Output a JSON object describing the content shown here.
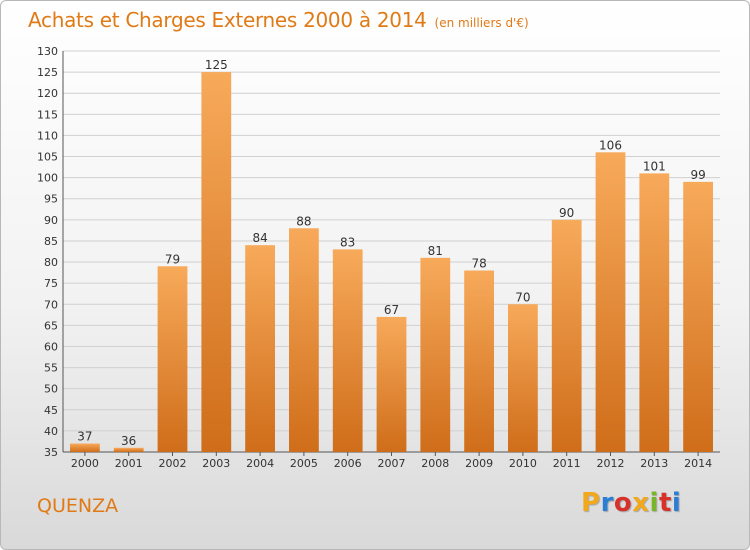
{
  "header": {
    "title": "Achats et Charges Externes 2000 à 2014",
    "subtitle": "(en milliers d'€)"
  },
  "footer": {
    "town": "QUENZA",
    "logo_text": "Proxiti",
    "logo_colors": [
      "#f2a81d",
      "#2a7fd4",
      "#d6312b",
      "#f2a81d",
      "#79b52a",
      "#d6312b",
      "#2a7fd4"
    ]
  },
  "colors": {
    "accent": "#e07a16",
    "bar_top": "#f7aa5a",
    "bar_bottom": "#cf6d1a",
    "grid": "#d0d0d0"
  },
  "chart_data": {
    "type": "bar",
    "title": "Achats et Charges Externes 2000 à 2014",
    "subtitle": "(en milliers d'€)",
    "categories": [
      "2000",
      "2001",
      "2002",
      "2003",
      "2004",
      "2005",
      "2006",
      "2007",
      "2008",
      "2009",
      "2010",
      "2011",
      "2012",
      "2013",
      "2014"
    ],
    "values": [
      37,
      36,
      79,
      125,
      84,
      88,
      83,
      67,
      81,
      78,
      70,
      90,
      106,
      101,
      99
    ],
    "xlabel": "",
    "ylabel": "",
    "ylim": [
      35,
      130
    ],
    "ytick_step": 5,
    "grid": true,
    "data_labels": true
  }
}
